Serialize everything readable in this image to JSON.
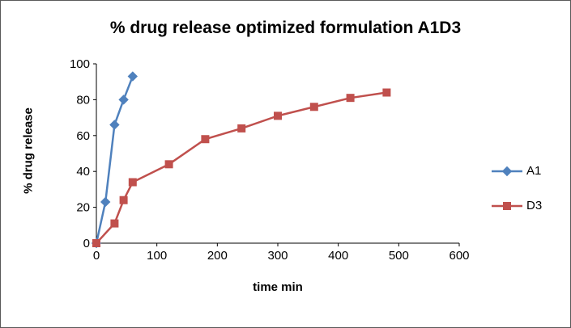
{
  "chart_data": {
    "type": "line",
    "title": "% drug release optimized formulation A1D3",
    "xlabel": "time min",
    "ylabel": "% drug release",
    "xlim": [
      0,
      600
    ],
    "ylim": [
      0,
      100
    ],
    "xtick_step": 100,
    "ytick_step": 20,
    "grid": false,
    "legend_position": "right",
    "series": [
      {
        "name": "A1",
        "marker": "diamond",
        "color": "#4F81BD",
        "x": [
          0,
          15,
          30,
          45,
          60
        ],
        "y": [
          0,
          23,
          66,
          80,
          93
        ]
      },
      {
        "name": "D3",
        "marker": "square",
        "color": "#C0504D",
        "x": [
          0,
          30,
          45,
          60,
          120,
          180,
          240,
          300,
          360,
          420,
          480
        ],
        "y": [
          0,
          11,
          24,
          34,
          44,
          58,
          64,
          71,
          76,
          81,
          84
        ]
      }
    ]
  }
}
